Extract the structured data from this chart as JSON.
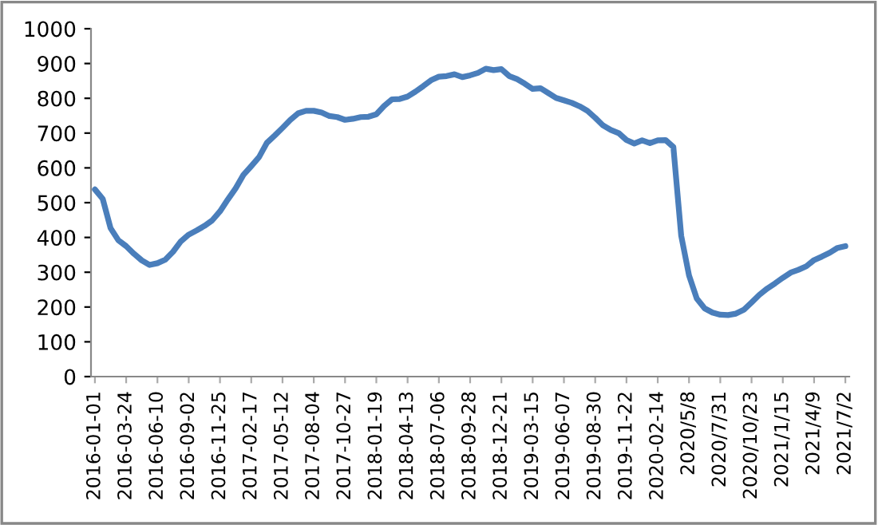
{
  "chart_data": {
    "type": "line",
    "categories": [
      "2016-01-01",
      null,
      null,
      null,
      "2016-03-24",
      null,
      null,
      null,
      "2016-06-10",
      null,
      null,
      null,
      "2016-09-02",
      null,
      null,
      null,
      "2016-11-25",
      null,
      null,
      null,
      "2017-02-17",
      null,
      null,
      null,
      "2017-05-12",
      null,
      null,
      null,
      "2017-08-04",
      null,
      null,
      null,
      "2017-10-27",
      null,
      null,
      null,
      "2018-01-19",
      null,
      null,
      null,
      "2018-04-13",
      null,
      null,
      null,
      "2018-07-06",
      null,
      null,
      null,
      "2018-09-28",
      null,
      null,
      null,
      "2018-12-21",
      null,
      null,
      null,
      "2019-03-15",
      null,
      null,
      null,
      "2019-06-07",
      null,
      null,
      null,
      "2019-08-30",
      null,
      null,
      null,
      "2019-11-22",
      null,
      null,
      null,
      "2020-02-14",
      null,
      null,
      null,
      "2020/5/8",
      null,
      null,
      null,
      "2020/7/31",
      null,
      null,
      null,
      "2020/10/23",
      null,
      null,
      null,
      "2021/1/15",
      null,
      null,
      null,
      "2021/4/9",
      null,
      null,
      null,
      "2021/7/2"
    ],
    "series": [
      {
        "color": "#4a7ebb",
        "values": [
          538,
          511,
          427,
          392,
          375,
          353,
          334,
          321,
          326,
          336,
          359,
          389,
          408,
          420,
          433,
          449,
          475,
          509,
          541,
          580,
          605,
          631,
          672,
          693,
          715,
          738,
          757,
          764,
          764,
          759,
          749,
          746,
          738,
          741,
          746,
          747,
          754,
          778,
          797,
          798,
          805,
          819,
          835,
          852,
          862,
          864,
          869,
          861,
          866,
          873,
          885,
          881,
          884,
          864,
          855,
          842,
          827,
          829,
          815,
          801,
          794,
          787,
          777,
          764,
          744,
          722,
          709,
          700,
          680,
          670,
          679,
          671,
          679,
          680,
          660,
          405,
          291,
          224,
          196,
          184,
          178,
          177,
          181,
          192,
          213,
          235,
          253,
          268,
          284,
          299,
          307,
          317,
          335,
          345,
          356,
          370,
          375
        ]
      }
    ],
    "ylim": [
      0,
      1000
    ],
    "yticks": [
      0,
      100,
      200,
      300,
      400,
      500,
      600,
      700,
      800,
      900,
      1000
    ],
    "marker": "none",
    "line_style": "solid"
  }
}
